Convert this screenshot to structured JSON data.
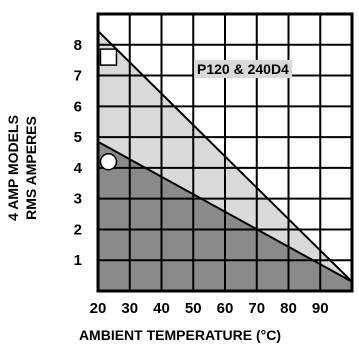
{
  "chart_data": {
    "type": "area",
    "title": "",
    "xlabel": "AMBIENT TEMPERATURE (°C)",
    "ylabel_line1": "4 AMP MODELS",
    "ylabel_line2": "RMS AMPERES",
    "xlim": [
      20,
      100
    ],
    "ylim": [
      0,
      9
    ],
    "x_ticks": [
      "20",
      "30",
      "40",
      "50",
      "60",
      "70",
      "80",
      "90"
    ],
    "y_ticks": [
      "1",
      "2",
      "3",
      "4",
      "5",
      "6",
      "7",
      "8"
    ],
    "grid": true,
    "series": [
      {
        "name": "P120 & 240D4",
        "marker": "square",
        "x": [
          20,
          100
        ],
        "y": [
          8.45,
          0.3
        ],
        "fill_color": "#d9d9d9"
      },
      {
        "name": "",
        "marker": "circle",
        "x": [
          20,
          100
        ],
        "y": [
          4.85,
          0.3
        ],
        "fill_color": "#8a8a8a"
      }
    ],
    "markers": [
      {
        "shape": "square",
        "x": 23.3,
        "y": 7.6
      },
      {
        "shape": "circle",
        "x": 23.3,
        "y": 4.2
      }
    ]
  }
}
